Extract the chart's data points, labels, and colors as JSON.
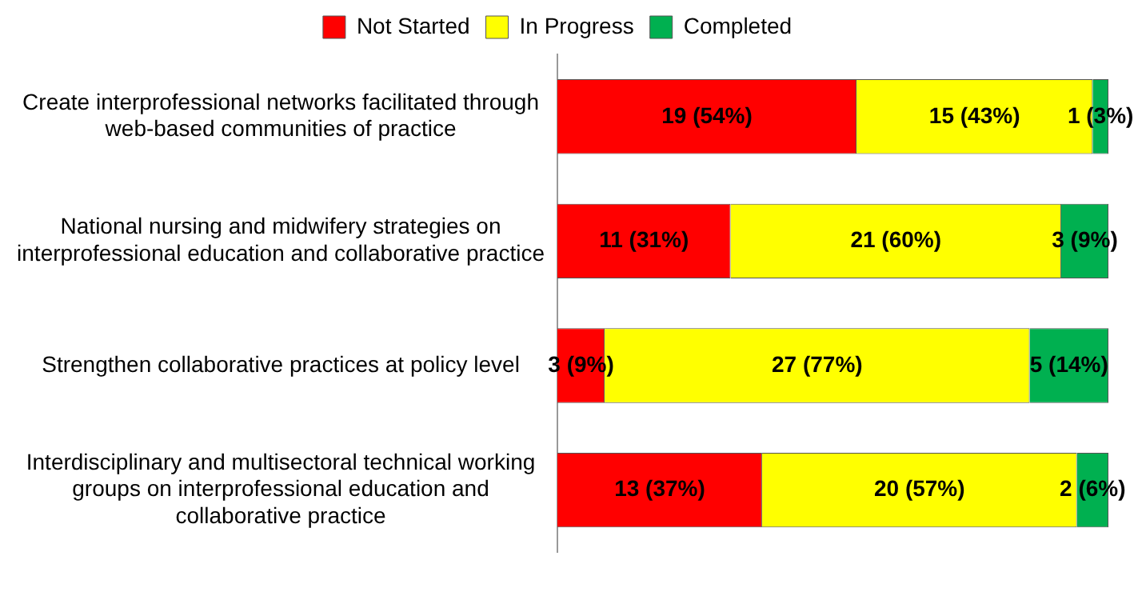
{
  "chart_data": {
    "type": "bar",
    "orientation": "horizontal",
    "stacked": true,
    "legend": "top",
    "grid": false,
    "categories": [
      "Create interprofessional networks facilitated through web-based communities of practice",
      "National nursing and midwifery strategies on interprofessional education and collaborative practice",
      "Strengthen collaborative practices at policy level",
      "Interdisciplinary and multisectoral technical working groups on interprofessional education and collaborative practice"
    ],
    "series": [
      {
        "name": "Not Started",
        "color": "#ff0000",
        "values": [
          19,
          11,
          3,
          13
        ],
        "value_labels": [
          "19 (54%)",
          "11 (31%)",
          "3 (9%)",
          "13 (37%)"
        ]
      },
      {
        "name": "In Progress",
        "color": "#ffff00",
        "values": [
          15,
          21,
          27,
          20
        ],
        "value_labels": [
          "15 (43%)",
          "21 (60%)",
          "27 (77%)",
          "20 (57%)"
        ]
      },
      {
        "name": "Completed",
        "color": "#00b050",
        "values": [
          1,
          3,
          5,
          2
        ],
        "value_labels": [
          "1 (3%)",
          "3 (9%)",
          "5 (14%)",
          "2 (6%)"
        ]
      }
    ]
  }
}
